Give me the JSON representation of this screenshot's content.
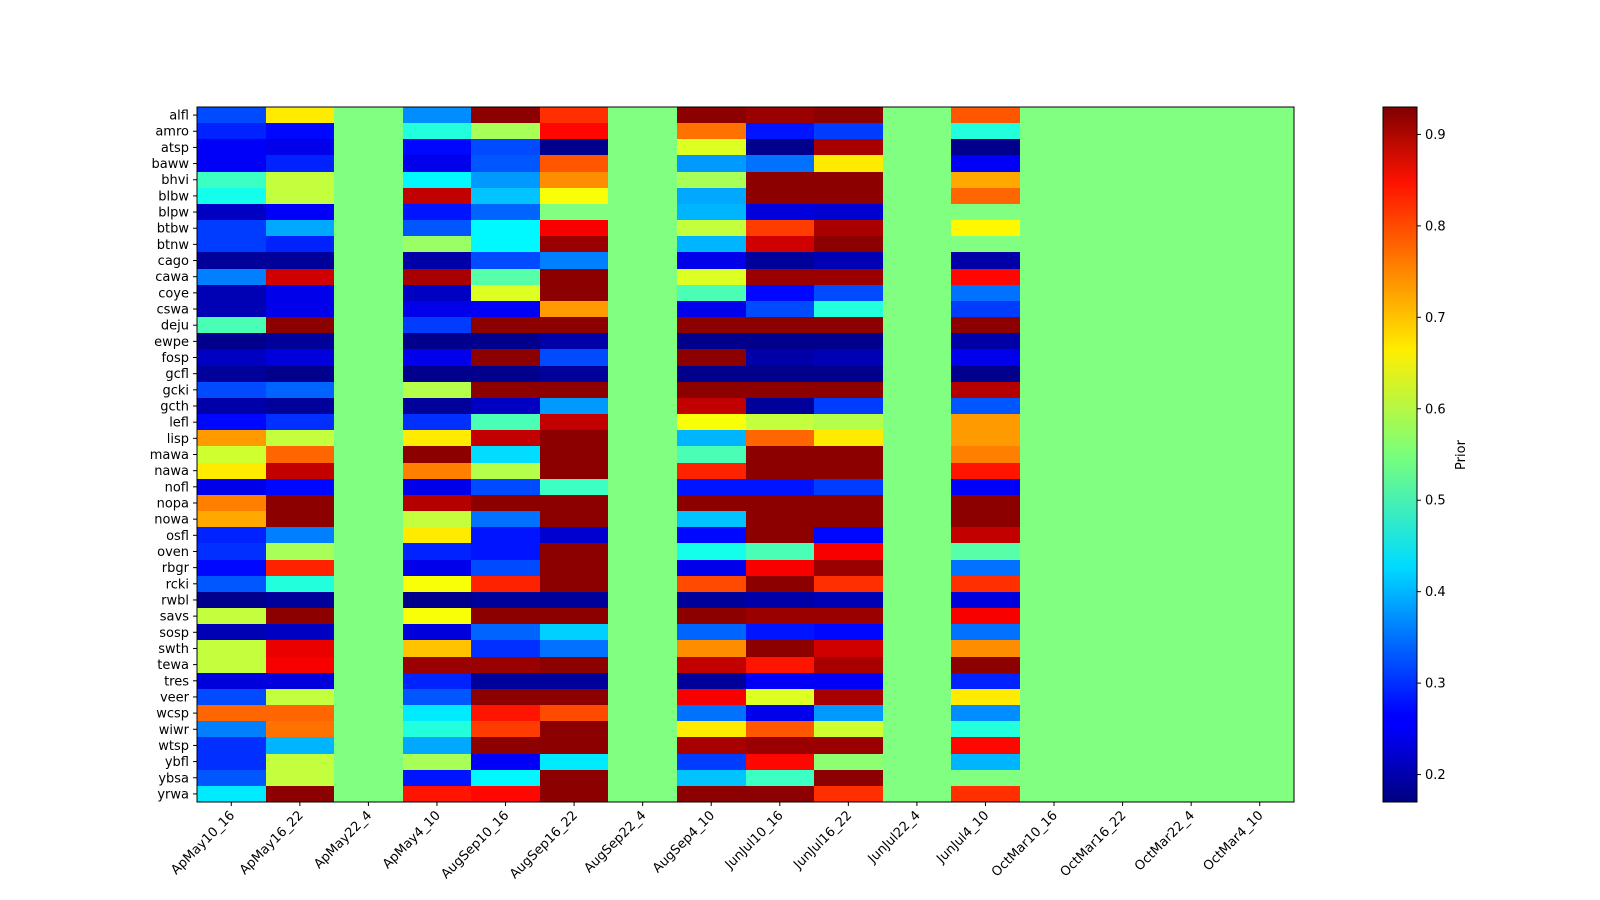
{
  "chart_data": {
    "type": "heatmap",
    "title": "",
    "xlabel": "",
    "ylabel": "",
    "colormap": "jet",
    "colorbar_label": "Prior",
    "vmin": 0.17,
    "vmax": 0.93,
    "colorbar_ticks": [
      0.2,
      0.3,
      0.4,
      0.5,
      0.6,
      0.7,
      0.8,
      0.9
    ],
    "colorbar_tick_labels": [
      "0.2",
      "0.3",
      "0.4",
      "0.5",
      "0.6",
      "0.7",
      "0.8",
      "0.9"
    ],
    "columns": [
      "ApMay10_16",
      "ApMay16_22",
      "ApMay22_4",
      "ApMay4_10",
      "AugSep10_16",
      "AugSep16_22",
      "AugSep22_4",
      "AugSep4_10",
      "JunJul10_16",
      "JunJul16_22",
      "JunJul22_4",
      "JunJul4_10",
      "OctMar10_16",
      "OctMar16_22",
      "OctMar22_4",
      "OctMar4_10"
    ],
    "rows": [
      "alfl",
      "amro",
      "atsp",
      "baww",
      "bhvi",
      "blbw",
      "blpw",
      "btbw",
      "btnw",
      "cago",
      "cawa",
      "coye",
      "cswa",
      "deju",
      "ewpe",
      "fosp",
      "gcfl",
      "gcki",
      "gcth",
      "lefl",
      "lisp",
      "mawa",
      "nawa",
      "nofl",
      "nopa",
      "nowa",
      "osfl",
      "oven",
      "rbgr",
      "rcki",
      "rwbl",
      "savs",
      "sosp",
      "swth",
      "tewa",
      "tres",
      "veer",
      "wcsp",
      "wiwr",
      "wtsp",
      "ybfl",
      "ybsa",
      "yrwa"
    ],
    "values": [
      [
        0.32,
        0.66,
        0.55,
        0.37,
        0.92,
        0.8,
        0.55,
        0.92,
        0.91,
        0.92,
        0.55,
        0.77,
        0.55,
        0.55,
        0.55,
        0.55
      ],
      [
        0.29,
        0.27,
        0.55,
        0.48,
        0.58,
        0.83,
        0.55,
        0.75,
        0.28,
        0.31,
        0.55,
        0.48,
        0.55,
        0.55,
        0.55,
        0.55
      ],
      [
        0.26,
        0.25,
        0.55,
        0.27,
        0.32,
        0.18,
        0.55,
        0.62,
        0.18,
        0.9,
        0.55,
        0.18,
        0.55,
        0.55,
        0.55,
        0.55
      ],
      [
        0.26,
        0.29,
        0.55,
        0.25,
        0.33,
        0.77,
        0.55,
        0.38,
        0.35,
        0.66,
        0.55,
        0.26,
        0.55,
        0.55,
        0.55,
        0.55
      ],
      [
        0.5,
        0.6,
        0.55,
        0.45,
        0.38,
        0.73,
        0.55,
        0.58,
        0.92,
        0.92,
        0.55,
        0.71,
        0.55,
        0.55,
        0.55,
        0.55
      ],
      [
        0.47,
        0.6,
        0.55,
        0.88,
        0.41,
        0.64,
        0.55,
        0.39,
        0.92,
        0.92,
        0.55,
        0.76,
        0.55,
        0.55,
        0.55,
        0.55
      ],
      [
        0.22,
        0.26,
        0.55,
        0.28,
        0.34,
        0.55,
        0.55,
        0.4,
        0.24,
        0.23,
        0.55,
        0.55,
        0.55,
        0.55,
        0.55,
        0.55
      ],
      [
        0.31,
        0.39,
        0.55,
        0.33,
        0.45,
        0.84,
        0.55,
        0.6,
        0.79,
        0.9,
        0.55,
        0.65,
        0.55,
        0.55,
        0.55,
        0.55
      ],
      [
        0.31,
        0.29,
        0.55,
        0.57,
        0.45,
        0.91,
        0.55,
        0.4,
        0.87,
        0.92,
        0.55,
        0.55,
        0.55,
        0.55,
        0.55,
        0.55
      ],
      [
        0.19,
        0.19,
        0.55,
        0.2,
        0.32,
        0.36,
        0.55,
        0.25,
        0.19,
        0.21,
        0.55,
        0.2,
        0.55,
        0.55,
        0.55,
        0.55
      ],
      [
        0.36,
        0.87,
        0.55,
        0.9,
        0.52,
        0.92,
        0.55,
        0.62,
        0.91,
        0.91,
        0.55,
        0.83,
        0.55,
        0.55,
        0.55,
        0.55
      ],
      [
        0.21,
        0.25,
        0.55,
        0.22,
        0.62,
        0.92,
        0.55,
        0.51,
        0.27,
        0.32,
        0.55,
        0.35,
        0.55,
        0.55,
        0.55,
        0.55
      ],
      [
        0.21,
        0.25,
        0.55,
        0.25,
        0.26,
        0.72,
        0.55,
        0.25,
        0.32,
        0.48,
        0.55,
        0.31,
        0.55,
        0.55,
        0.55,
        0.55
      ],
      [
        0.51,
        0.92,
        0.55,
        0.31,
        0.92,
        0.92,
        0.55,
        0.92,
        0.92,
        0.92,
        0.55,
        0.92,
        0.55,
        0.55,
        0.55,
        0.55
      ],
      [
        0.18,
        0.19,
        0.55,
        0.18,
        0.18,
        0.2,
        0.55,
        0.18,
        0.18,
        0.18,
        0.55,
        0.2,
        0.55,
        0.55,
        0.55,
        0.55
      ],
      [
        0.22,
        0.24,
        0.55,
        0.25,
        0.92,
        0.32,
        0.55,
        0.92,
        0.2,
        0.21,
        0.55,
        0.25,
        0.55,
        0.55,
        0.55,
        0.55
      ],
      [
        0.19,
        0.18,
        0.55,
        0.18,
        0.18,
        0.19,
        0.55,
        0.18,
        0.18,
        0.18,
        0.55,
        0.18,
        0.55,
        0.55,
        0.55,
        0.55
      ],
      [
        0.32,
        0.34,
        0.55,
        0.59,
        0.92,
        0.92,
        0.55,
        0.92,
        0.92,
        0.92,
        0.55,
        0.89,
        0.55,
        0.55,
        0.55,
        0.55
      ],
      [
        0.2,
        0.19,
        0.55,
        0.19,
        0.22,
        0.38,
        0.55,
        0.88,
        0.19,
        0.31,
        0.55,
        0.33,
        0.55,
        0.55,
        0.55,
        0.55
      ],
      [
        0.27,
        0.3,
        0.55,
        0.3,
        0.51,
        0.88,
        0.55,
        0.64,
        0.6,
        0.59,
        0.55,
        0.72,
        0.55,
        0.55,
        0.55,
        0.55
      ],
      [
        0.72,
        0.6,
        0.55,
        0.66,
        0.88,
        0.92,
        0.55,
        0.4,
        0.76,
        0.66,
        0.55,
        0.72,
        0.55,
        0.55,
        0.55,
        0.55
      ],
      [
        0.61,
        0.76,
        0.55,
        0.92,
        0.43,
        0.92,
        0.55,
        0.51,
        0.92,
        0.92,
        0.55,
        0.74,
        0.55,
        0.55,
        0.55,
        0.55
      ],
      [
        0.66,
        0.88,
        0.55,
        0.74,
        0.59,
        0.92,
        0.55,
        0.81,
        0.92,
        0.92,
        0.55,
        0.82,
        0.55,
        0.55,
        0.55,
        0.55
      ],
      [
        0.25,
        0.27,
        0.55,
        0.25,
        0.32,
        0.5,
        0.55,
        0.28,
        0.28,
        0.31,
        0.55,
        0.26,
        0.55,
        0.55,
        0.55,
        0.55
      ],
      [
        0.74,
        0.92,
        0.55,
        0.89,
        0.92,
        0.92,
        0.55,
        0.92,
        0.92,
        0.92,
        0.55,
        0.92,
        0.55,
        0.55,
        0.55,
        0.55
      ],
      [
        0.71,
        0.92,
        0.55,
        0.6,
        0.35,
        0.92,
        0.55,
        0.41,
        0.92,
        0.92,
        0.55,
        0.92,
        0.55,
        0.55,
        0.55,
        0.55
      ],
      [
        0.29,
        0.36,
        0.55,
        0.66,
        0.28,
        0.23,
        0.55,
        0.27,
        0.92,
        0.27,
        0.55,
        0.88,
        0.55,
        0.55,
        0.55,
        0.55
      ],
      [
        0.3,
        0.58,
        0.55,
        0.29,
        0.28,
        0.92,
        0.55,
        0.47,
        0.51,
        0.84,
        0.55,
        0.52,
        0.55,
        0.55,
        0.55,
        0.55
      ],
      [
        0.27,
        0.81,
        0.55,
        0.25,
        0.32,
        0.92,
        0.55,
        0.25,
        0.84,
        0.91,
        0.55,
        0.35,
        0.55,
        0.55,
        0.55,
        0.55
      ],
      [
        0.33,
        0.48,
        0.55,
        0.64,
        0.81,
        0.92,
        0.55,
        0.78,
        0.92,
        0.8,
        0.55,
        0.8,
        0.55,
        0.55,
        0.55,
        0.55
      ],
      [
        0.18,
        0.19,
        0.55,
        0.18,
        0.19,
        0.19,
        0.55,
        0.19,
        0.2,
        0.21,
        0.55,
        0.24,
        0.55,
        0.55,
        0.55,
        0.55
      ],
      [
        0.6,
        0.92,
        0.55,
        0.64,
        0.92,
        0.92,
        0.55,
        0.92,
        0.91,
        0.91,
        0.55,
        0.84,
        0.55,
        0.55,
        0.55,
        0.55
      ],
      [
        0.21,
        0.22,
        0.55,
        0.24,
        0.34,
        0.42,
        0.55,
        0.34,
        0.28,
        0.27,
        0.55,
        0.35,
        0.55,
        0.55,
        0.55,
        0.55
      ],
      [
        0.6,
        0.85,
        0.55,
        0.69,
        0.3,
        0.35,
        0.55,
        0.73,
        0.92,
        0.87,
        0.55,
        0.73,
        0.55,
        0.55,
        0.55,
        0.55
      ],
      [
        0.6,
        0.84,
        0.55,
        0.91,
        0.91,
        0.92,
        0.55,
        0.88,
        0.82,
        0.9,
        0.55,
        0.92,
        0.55,
        0.55,
        0.55,
        0.55
      ],
      [
        0.24,
        0.24,
        0.55,
        0.29,
        0.19,
        0.19,
        0.55,
        0.19,
        0.26,
        0.26,
        0.55,
        0.29,
        0.55,
        0.55,
        0.55,
        0.55
      ],
      [
        0.32,
        0.6,
        0.55,
        0.33,
        0.92,
        0.92,
        0.55,
        0.84,
        0.62,
        0.9,
        0.55,
        0.66,
        0.55,
        0.55,
        0.55,
        0.55
      ],
      [
        0.76,
        0.76,
        0.55,
        0.44,
        0.82,
        0.78,
        0.55,
        0.35,
        0.25,
        0.38,
        0.55,
        0.37,
        0.55,
        0.55,
        0.55,
        0.55
      ],
      [
        0.36,
        0.75,
        0.55,
        0.48,
        0.79,
        0.92,
        0.55,
        0.66,
        0.77,
        0.61,
        0.55,
        0.48,
        0.55,
        0.55,
        0.55,
        0.55
      ],
      [
        0.3,
        0.4,
        0.55,
        0.39,
        0.92,
        0.92,
        0.55,
        0.9,
        0.91,
        0.91,
        0.55,
        0.83,
        0.55,
        0.55,
        0.55,
        0.55
      ],
      [
        0.3,
        0.6,
        0.55,
        0.58,
        0.26,
        0.44,
        0.55,
        0.31,
        0.83,
        0.56,
        0.55,
        0.4,
        0.55,
        0.55,
        0.55,
        0.55
      ],
      [
        0.33,
        0.6,
        0.55,
        0.28,
        0.45,
        0.92,
        0.55,
        0.41,
        0.5,
        0.92,
        0.55,
        0.55,
        0.55,
        0.55,
        0.55,
        0.55
      ],
      [
        0.44,
        0.92,
        0.55,
        0.82,
        0.83,
        0.92,
        0.55,
        0.92,
        0.92,
        0.8,
        0.55,
        0.8,
        0.55,
        0.55,
        0.55,
        0.55
      ]
    ]
  }
}
